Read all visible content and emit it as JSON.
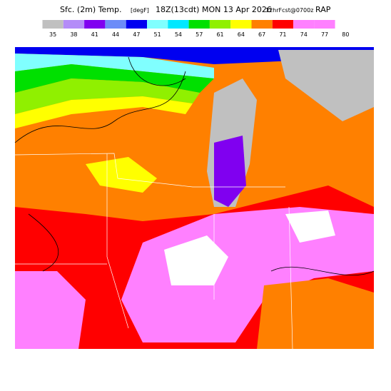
{
  "header": {
    "parts": [
      "Sfc. (2m) Temp.",
      "[degF]",
      "18Z(13cdt)",
      "MON 13 Apr 2026",
      "12hrFcst@0700z",
      "RAP"
    ]
  },
  "legend": {
    "items": [
      {
        "label": "35",
        "color": "#c0c0c0"
      },
      {
        "label": "38",
        "color": "#b48cf8"
      },
      {
        "label": "41",
        "color": "#8000f0"
      },
      {
        "label": "44",
        "color": "#6c8cf8"
      },
      {
        "label": "47",
        "color": "#0000f0"
      },
      {
        "label": "51",
        "color": "#80ffff"
      },
      {
        "label": "54",
        "color": "#00e8ff"
      },
      {
        "label": "57",
        "color": "#00e000"
      },
      {
        "label": "61",
        "color": "#90f000"
      },
      {
        "label": "64",
        "color": "#ffff00"
      },
      {
        "label": "67",
        "color": "#ff8000"
      },
      {
        "label": "71",
        "color": "#ff0000"
      },
      {
        "label": "74",
        "color": "#ff80ff"
      },
      {
        "label": "77",
        "color": "#ff80ff"
      },
      {
        "label": "80",
        "color": "#ffffff"
      }
    ]
  }
}
